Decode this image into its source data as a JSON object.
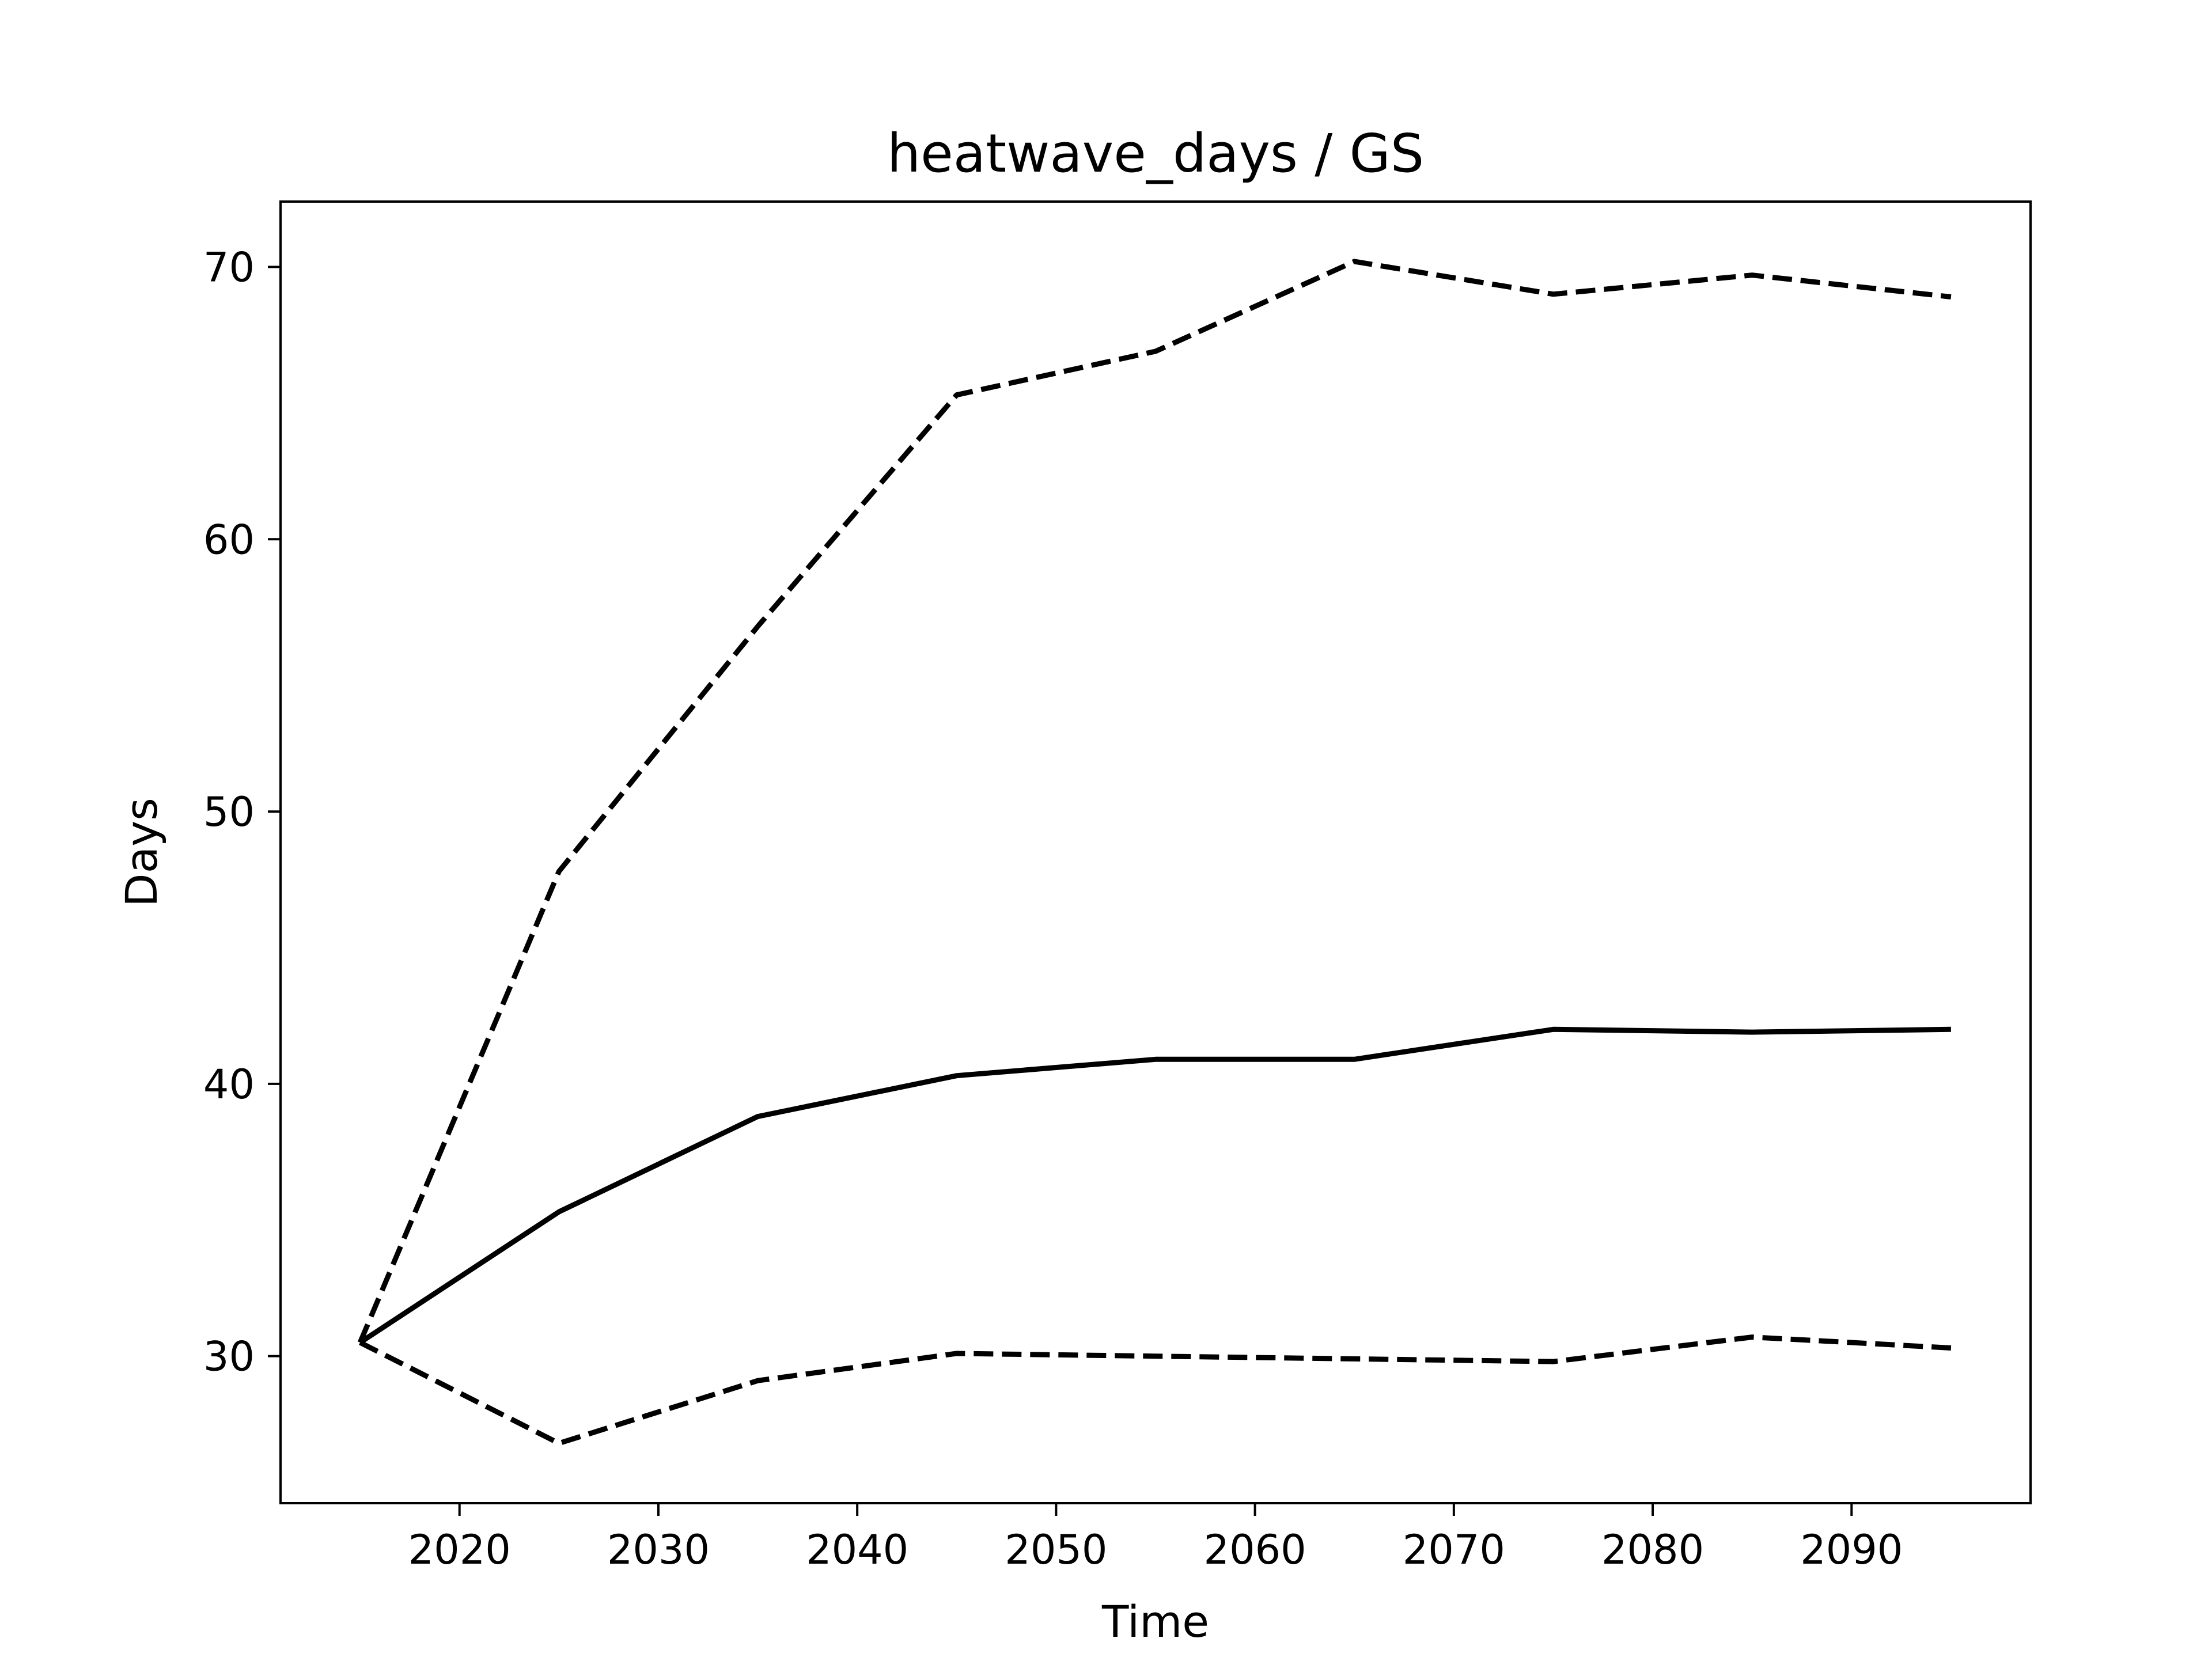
{
  "chart_data": {
    "type": "line",
    "title": "heatwave_days / GS",
    "xlabel": "Time",
    "ylabel": "Days",
    "xlim": [
      2011,
      2099
    ],
    "ylim": [
      24.6,
      72.4
    ],
    "xticks": [
      2020,
      2030,
      2040,
      2050,
      2060,
      2070,
      2080,
      2090
    ],
    "yticks": [
      30,
      40,
      50,
      60,
      70
    ],
    "grid": false,
    "legend": "none",
    "x": [
      2015,
      2025,
      2035,
      2045,
      2055,
      2065,
      2075,
      2085,
      2095
    ],
    "series": [
      {
        "style": "solid",
        "color": "#000000",
        "values": [
          30.5,
          35.3,
          38.8,
          40.3,
          40.9,
          40.9,
          42.0,
          41.9,
          42.0
        ]
      },
      {
        "style": "dashed",
        "color": "#000000",
        "values": [
          30.5,
          47.8,
          56.8,
          65.3,
          66.9,
          70.2,
          69.0,
          69.7,
          68.9
        ]
      },
      {
        "style": "dashed",
        "color": "#000000",
        "values": [
          30.5,
          26.8,
          29.1,
          30.1,
          30.0,
          29.9,
          29.8,
          30.7,
          30.3
        ]
      }
    ]
  }
}
